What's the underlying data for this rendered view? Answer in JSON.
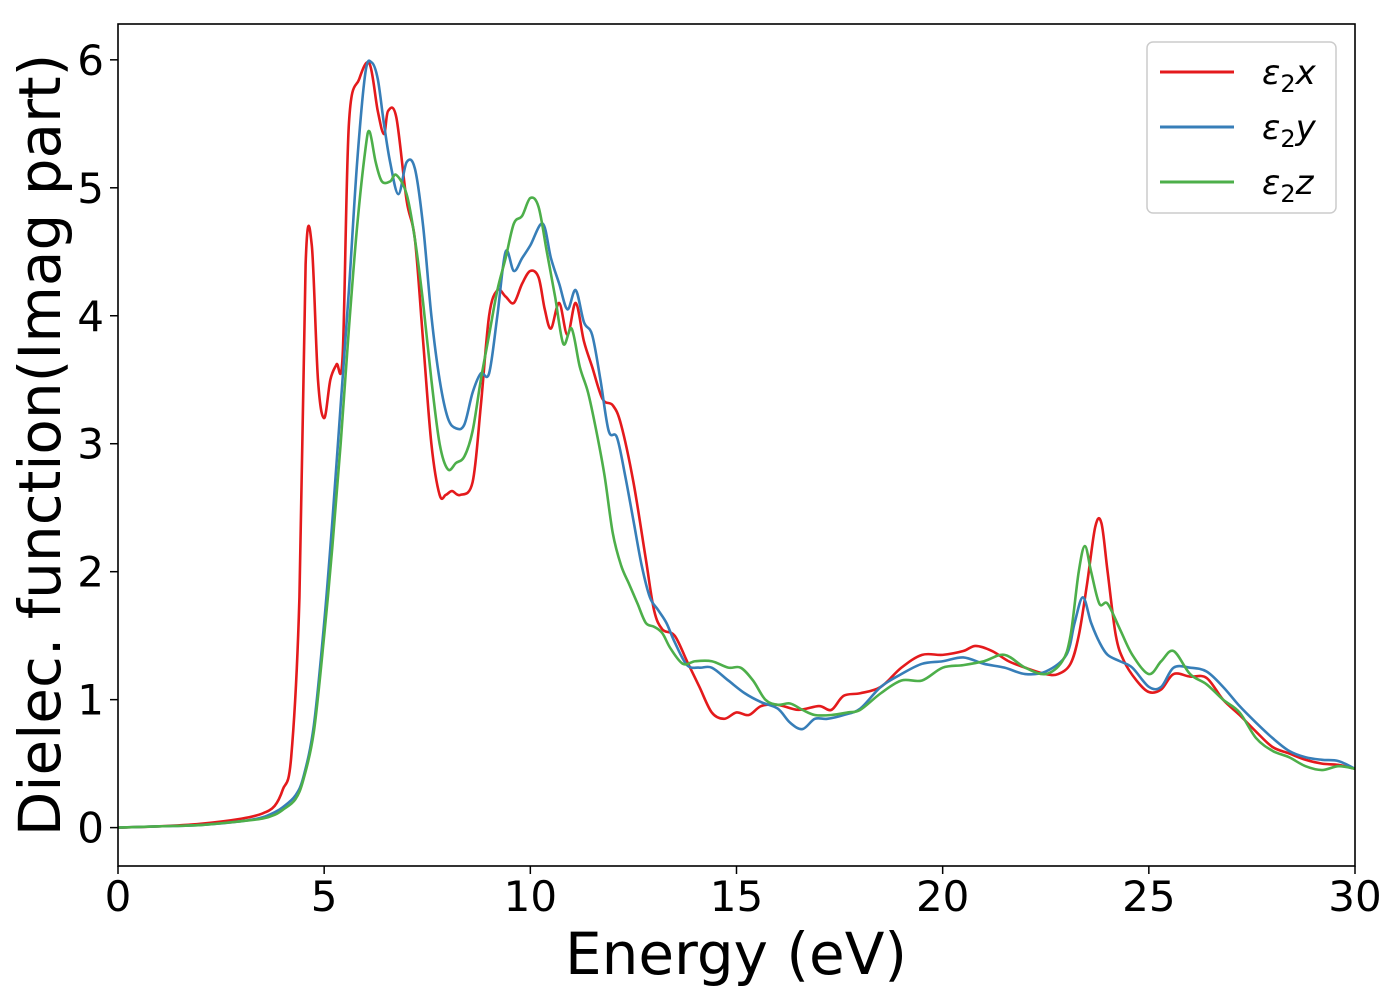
{
  "chart_data": {
    "type": "line",
    "title": "",
    "xlabel": "Energy (eV)",
    "ylabel": "Dielec. function(Imag part)",
    "xlim": [
      0,
      30
    ],
    "ylim": [
      -0.3,
      6.28
    ],
    "xticks": [
      0,
      5,
      10,
      15,
      20,
      25,
      30
    ],
    "yticks": [
      0,
      1,
      2,
      3,
      4,
      5,
      6
    ],
    "grid": false,
    "legend_position": "top-right",
    "series": [
      {
        "name": "ε2x",
        "legend_main": "ε",
        "legend_sub": "2",
        "legend_tail": "x",
        "color": "#e41a1c",
        "points": [
          [
            0,
            0
          ],
          [
            1,
            0.01
          ],
          [
            2,
            0.03
          ],
          [
            3,
            0.07
          ],
          [
            3.5,
            0.11
          ],
          [
            3.8,
            0.17
          ],
          [
            4.0,
            0.3
          ],
          [
            4.2,
            0.55
          ],
          [
            4.4,
            1.8
          ],
          [
            4.55,
            4.4
          ],
          [
            4.7,
            4.55
          ],
          [
            4.85,
            3.5
          ],
          [
            5.0,
            3.2
          ],
          [
            5.15,
            3.5
          ],
          [
            5.3,
            3.62
          ],
          [
            5.45,
            3.7
          ],
          [
            5.6,
            5.5
          ],
          [
            5.85,
            5.85
          ],
          [
            6.1,
            5.97
          ],
          [
            6.3,
            5.6
          ],
          [
            6.45,
            5.42
          ],
          [
            6.55,
            5.6
          ],
          [
            6.75,
            5.55
          ],
          [
            7.0,
            4.9
          ],
          [
            7.2,
            4.6
          ],
          [
            7.4,
            3.8
          ],
          [
            7.6,
            3.0
          ],
          [
            7.8,
            2.6
          ],
          [
            7.95,
            2.6
          ],
          [
            8.1,
            2.63
          ],
          [
            8.3,
            2.6
          ],
          [
            8.6,
            2.7
          ],
          [
            8.8,
            3.3
          ],
          [
            9.0,
            4.0
          ],
          [
            9.2,
            4.2
          ],
          [
            9.4,
            4.15
          ],
          [
            9.6,
            4.1
          ],
          [
            9.8,
            4.25
          ],
          [
            10.0,
            4.35
          ],
          [
            10.2,
            4.3
          ],
          [
            10.35,
            4.05
          ],
          [
            10.5,
            3.9
          ],
          [
            10.7,
            4.1
          ],
          [
            10.9,
            3.85
          ],
          [
            11.1,
            4.1
          ],
          [
            11.3,
            3.8
          ],
          [
            11.5,
            3.6
          ],
          [
            11.75,
            3.35
          ],
          [
            12.0,
            3.3
          ],
          [
            12.2,
            3.15
          ],
          [
            12.5,
            2.7
          ],
          [
            12.8,
            2.1
          ],
          [
            13.0,
            1.7
          ],
          [
            13.2,
            1.55
          ],
          [
            13.5,
            1.5
          ],
          [
            13.8,
            1.3
          ],
          [
            14.1,
            1.1
          ],
          [
            14.4,
            0.9
          ],
          [
            14.7,
            0.85
          ],
          [
            15.0,
            0.9
          ],
          [
            15.3,
            0.88
          ],
          [
            15.6,
            0.95
          ],
          [
            16.0,
            0.96
          ],
          [
            16.5,
            0.92
          ],
          [
            17.0,
            0.95
          ],
          [
            17.3,
            0.92
          ],
          [
            17.6,
            1.03
          ],
          [
            18.0,
            1.05
          ],
          [
            18.5,
            1.1
          ],
          [
            19.0,
            1.25
          ],
          [
            19.5,
            1.35
          ],
          [
            20.0,
            1.35
          ],
          [
            20.5,
            1.38
          ],
          [
            20.8,
            1.42
          ],
          [
            21.2,
            1.38
          ],
          [
            21.6,
            1.3
          ],
          [
            22.0,
            1.25
          ],
          [
            22.5,
            1.2
          ],
          [
            22.8,
            1.2
          ],
          [
            23.1,
            1.28
          ],
          [
            23.3,
            1.5
          ],
          [
            23.5,
            1.9
          ],
          [
            23.7,
            2.35
          ],
          [
            23.85,
            2.38
          ],
          [
            24.0,
            2.0
          ],
          [
            24.2,
            1.5
          ],
          [
            24.4,
            1.3
          ],
          [
            24.7,
            1.15
          ],
          [
            25.0,
            1.06
          ],
          [
            25.3,
            1.08
          ],
          [
            25.6,
            1.2
          ],
          [
            26.0,
            1.18
          ],
          [
            26.4,
            1.17
          ],
          [
            26.8,
            1.0
          ],
          [
            27.2,
            0.88
          ],
          [
            27.6,
            0.75
          ],
          [
            28.0,
            0.63
          ],
          [
            28.4,
            0.58
          ],
          [
            28.8,
            0.53
          ],
          [
            29.2,
            0.5
          ],
          [
            29.6,
            0.49
          ],
          [
            30.0,
            0.46
          ]
        ]
      },
      {
        "name": "ε2y",
        "legend_main": "ε",
        "legend_sub": "2",
        "legend_tail": "y",
        "color": "#377eb8",
        "points": [
          [
            0,
            0
          ],
          [
            1,
            0.01
          ],
          [
            2,
            0.02
          ],
          [
            3,
            0.05
          ],
          [
            3.5,
            0.08
          ],
          [
            3.8,
            0.12
          ],
          [
            4.0,
            0.16
          ],
          [
            4.3,
            0.25
          ],
          [
            4.5,
            0.4
          ],
          [
            4.75,
            0.8
          ],
          [
            5.0,
            1.6
          ],
          [
            5.2,
            2.4
          ],
          [
            5.4,
            3.3
          ],
          [
            5.6,
            4.2
          ],
          [
            5.8,
            5.2
          ],
          [
            6.0,
            5.9
          ],
          [
            6.15,
            5.98
          ],
          [
            6.3,
            5.85
          ],
          [
            6.45,
            5.5
          ],
          [
            6.6,
            5.2
          ],
          [
            6.8,
            4.95
          ],
          [
            7.0,
            5.2
          ],
          [
            7.2,
            5.15
          ],
          [
            7.4,
            4.7
          ],
          [
            7.6,
            4.0
          ],
          [
            7.8,
            3.5
          ],
          [
            8.0,
            3.2
          ],
          [
            8.2,
            3.12
          ],
          [
            8.4,
            3.15
          ],
          [
            8.6,
            3.4
          ],
          [
            8.8,
            3.55
          ],
          [
            9.0,
            3.55
          ],
          [
            9.2,
            4.0
          ],
          [
            9.4,
            4.5
          ],
          [
            9.6,
            4.35
          ],
          [
            9.8,
            4.45
          ],
          [
            10.0,
            4.55
          ],
          [
            10.3,
            4.72
          ],
          [
            10.5,
            4.45
          ],
          [
            10.7,
            4.25
          ],
          [
            10.9,
            4.05
          ],
          [
            11.1,
            4.2
          ],
          [
            11.3,
            3.95
          ],
          [
            11.5,
            3.85
          ],
          [
            11.7,
            3.5
          ],
          [
            11.9,
            3.1
          ],
          [
            12.1,
            3.05
          ],
          [
            12.3,
            2.75
          ],
          [
            12.5,
            2.4
          ],
          [
            12.7,
            2.05
          ],
          [
            12.9,
            1.8
          ],
          [
            13.1,
            1.7
          ],
          [
            13.3,
            1.6
          ],
          [
            13.5,
            1.45
          ],
          [
            13.8,
            1.27
          ],
          [
            14.1,
            1.25
          ],
          [
            14.4,
            1.25
          ],
          [
            14.8,
            1.15
          ],
          [
            15.2,
            1.05
          ],
          [
            15.6,
            0.98
          ],
          [
            16.0,
            0.93
          ],
          [
            16.3,
            0.82
          ],
          [
            16.6,
            0.77
          ],
          [
            16.9,
            0.85
          ],
          [
            17.2,
            0.85
          ],
          [
            17.6,
            0.88
          ],
          [
            18.0,
            0.93
          ],
          [
            18.5,
            1.1
          ],
          [
            19.0,
            1.2
          ],
          [
            19.5,
            1.28
          ],
          [
            20.0,
            1.3
          ],
          [
            20.5,
            1.33
          ],
          [
            21.0,
            1.28
          ],
          [
            21.5,
            1.25
          ],
          [
            22.0,
            1.2
          ],
          [
            22.5,
            1.22
          ],
          [
            23.0,
            1.35
          ],
          [
            23.2,
            1.6
          ],
          [
            23.4,
            1.8
          ],
          [
            23.6,
            1.6
          ],
          [
            23.8,
            1.45
          ],
          [
            24.0,
            1.35
          ],
          [
            24.3,
            1.3
          ],
          [
            24.6,
            1.25
          ],
          [
            25.0,
            1.1
          ],
          [
            25.3,
            1.1
          ],
          [
            25.6,
            1.25
          ],
          [
            26.0,
            1.25
          ],
          [
            26.4,
            1.22
          ],
          [
            26.8,
            1.1
          ],
          [
            27.2,
            0.95
          ],
          [
            27.6,
            0.82
          ],
          [
            28.0,
            0.7
          ],
          [
            28.4,
            0.6
          ],
          [
            28.8,
            0.55
          ],
          [
            29.2,
            0.53
          ],
          [
            29.6,
            0.52
          ],
          [
            30.0,
            0.46
          ]
        ]
      },
      {
        "name": "ε2z",
        "legend_main": "ε",
        "legend_sub": "2",
        "legend_tail": "z",
        "color": "#4daf4a",
        "points": [
          [
            0,
            0
          ],
          [
            1,
            0.01
          ],
          [
            2,
            0.02
          ],
          [
            3,
            0.05
          ],
          [
            3.5,
            0.07
          ],
          [
            3.8,
            0.1
          ],
          [
            4.0,
            0.14
          ],
          [
            4.3,
            0.22
          ],
          [
            4.5,
            0.38
          ],
          [
            4.75,
            0.75
          ],
          [
            5.0,
            1.5
          ],
          [
            5.2,
            2.2
          ],
          [
            5.4,
            3.0
          ],
          [
            5.6,
            3.9
          ],
          [
            5.8,
            4.7
          ],
          [
            6.0,
            5.3
          ],
          [
            6.1,
            5.44
          ],
          [
            6.25,
            5.2
          ],
          [
            6.4,
            5.05
          ],
          [
            6.6,
            5.05
          ],
          [
            6.75,
            5.1
          ],
          [
            7.0,
            4.95
          ],
          [
            7.2,
            4.6
          ],
          [
            7.4,
            4.1
          ],
          [
            7.6,
            3.5
          ],
          [
            7.8,
            3.0
          ],
          [
            8.0,
            2.8
          ],
          [
            8.2,
            2.85
          ],
          [
            8.4,
            2.9
          ],
          [
            8.6,
            3.1
          ],
          [
            8.8,
            3.5
          ],
          [
            9.0,
            3.85
          ],
          [
            9.2,
            4.2
          ],
          [
            9.4,
            4.45
          ],
          [
            9.6,
            4.72
          ],
          [
            9.8,
            4.78
          ],
          [
            10.0,
            4.92
          ],
          [
            10.2,
            4.85
          ],
          [
            10.4,
            4.5
          ],
          [
            10.6,
            4.15
          ],
          [
            10.8,
            3.78
          ],
          [
            11.0,
            3.9
          ],
          [
            11.2,
            3.6
          ],
          [
            11.4,
            3.4
          ],
          [
            11.6,
            3.1
          ],
          [
            11.8,
            2.75
          ],
          [
            12.0,
            2.3
          ],
          [
            12.2,
            2.05
          ],
          [
            12.4,
            1.9
          ],
          [
            12.6,
            1.75
          ],
          [
            12.8,
            1.6
          ],
          [
            13.0,
            1.57
          ],
          [
            13.2,
            1.52
          ],
          [
            13.4,
            1.4
          ],
          [
            13.7,
            1.28
          ],
          [
            14.0,
            1.3
          ],
          [
            14.4,
            1.3
          ],
          [
            14.8,
            1.25
          ],
          [
            15.1,
            1.25
          ],
          [
            15.4,
            1.15
          ],
          [
            15.7,
            1.0
          ],
          [
            16.0,
            0.96
          ],
          [
            16.3,
            0.97
          ],
          [
            16.6,
            0.92
          ],
          [
            16.9,
            0.88
          ],
          [
            17.3,
            0.88
          ],
          [
            17.7,
            0.9
          ],
          [
            18.0,
            0.92
          ],
          [
            18.5,
            1.05
          ],
          [
            19.0,
            1.15
          ],
          [
            19.5,
            1.15
          ],
          [
            20.0,
            1.25
          ],
          [
            20.5,
            1.27
          ],
          [
            21.0,
            1.3
          ],
          [
            21.5,
            1.35
          ],
          [
            22.0,
            1.25
          ],
          [
            22.5,
            1.2
          ],
          [
            22.9,
            1.3
          ],
          [
            23.1,
            1.5
          ],
          [
            23.3,
            2.0
          ],
          [
            23.45,
            2.2
          ],
          [
            23.6,
            2.0
          ],
          [
            23.8,
            1.75
          ],
          [
            24.0,
            1.75
          ],
          [
            24.3,
            1.55
          ],
          [
            24.6,
            1.35
          ],
          [
            25.0,
            1.2
          ],
          [
            25.3,
            1.3
          ],
          [
            25.6,
            1.38
          ],
          [
            26.0,
            1.2
          ],
          [
            26.4,
            1.12
          ],
          [
            26.8,
            1.0
          ],
          [
            27.2,
            0.9
          ],
          [
            27.6,
            0.7
          ],
          [
            28.0,
            0.6
          ],
          [
            28.4,
            0.55
          ],
          [
            28.8,
            0.48
          ],
          [
            29.2,
            0.45
          ],
          [
            29.6,
            0.48
          ],
          [
            30.0,
            0.46
          ]
        ]
      }
    ]
  }
}
